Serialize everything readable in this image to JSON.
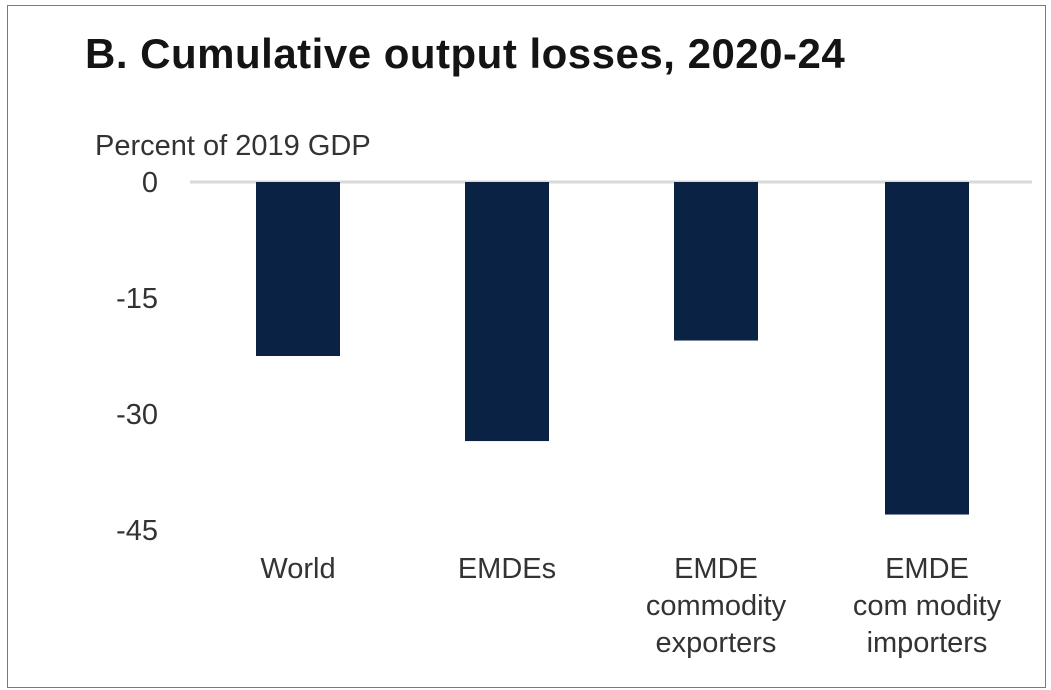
{
  "chart_data": {
    "type": "bar",
    "title": "B. Cumulative output losses, 2020-24",
    "ylabel": "Percent of 2019 GDP",
    "xlabel": "",
    "categories": [
      [
        "World"
      ],
      [
        "EMDEs"
      ],
      [
        "EMDE",
        "commodity",
        "exporters"
      ],
      [
        "EMDE",
        "com modity",
        "importers"
      ]
    ],
    "values": [
      -22.5,
      -33.5,
      -20.5,
      -43
    ],
    "ylim": [
      -45,
      0
    ],
    "yticks": [
      "0",
      "-15",
      "-30",
      "-45"
    ],
    "ytick_values": [
      0,
      -15,
      -30,
      -45
    ],
    "bar_color": "#0a2244",
    "zero_line_color": "#d9d9d9",
    "grid": false,
    "legend": "none"
  }
}
